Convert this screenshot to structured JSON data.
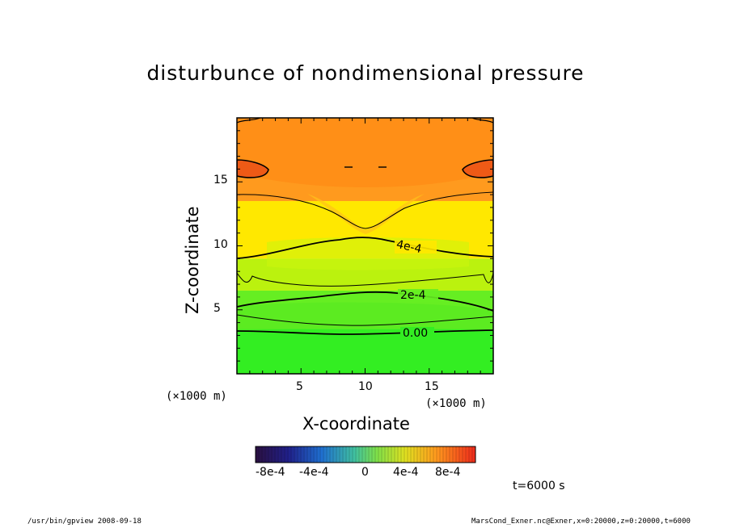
{
  "chart_data": {
    "type": "heatmap",
    "title": "disturbunce of nondimensional pressure",
    "xlabel": "X-coordinate",
    "ylabel": "Z-coordinate",
    "xlim": [
      0,
      20
    ],
    "ylim": [
      0,
      20
    ],
    "x_ticks": [
      "5",
      "10",
      "15"
    ],
    "y_ticks": [
      "5",
      "10",
      "15"
    ],
    "x_tick_values": [
      5,
      10,
      15
    ],
    "y_tick_values": [
      5,
      10,
      15
    ],
    "x_unit_left": "(×1000 m)",
    "x_unit_right": "(×1000 m)",
    "contour_labels": [
      "4e-4",
      "2e-4",
      "0.00"
    ],
    "contour_values": [
      0.0004,
      0.0002,
      0.0
    ],
    "colorbar": {
      "range": [
        -0.001,
        0.001
      ],
      "tick_labels": [
        "-8e-4",
        "-4e-4",
        "0",
        "4e-4",
        "8e-4"
      ],
      "tick_values": [
        -0.0008,
        -0.0004,
        0,
        0.0004,
        0.0008
      ]
    },
    "fill_bands": [
      {
        "z_from": 0,
        "z_to": 3.5,
        "value": 0.0,
        "color": "#33ee22"
      },
      {
        "z_from": 3.5,
        "z_to": 6.5,
        "value": 0.0001,
        "color": "#66ee22"
      },
      {
        "z_from": 6.5,
        "z_to": 9,
        "value": 0.00025,
        "color": "#bbf20e"
      },
      {
        "z_from": 9,
        "z_to": 13.5,
        "value": 0.00045,
        "color": "#ffe800"
      },
      {
        "z_from": 13.5,
        "z_to": 20,
        "value": 0.0007,
        "color": "#ff9a1e"
      }
    ]
  },
  "annotation": {
    "time": "t=6000 s"
  },
  "footer": {
    "left": "/usr/bin/gpview  2008-09-18",
    "right": "MarsCond_Exner.nc@Exner,x=0:20000,z=0:20000,t=6000"
  }
}
